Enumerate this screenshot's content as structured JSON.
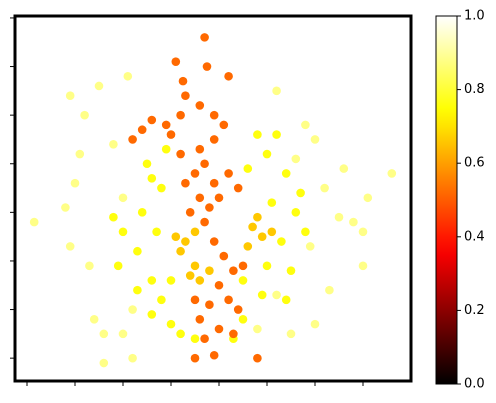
{
  "chart_data": {
    "type": "scatter",
    "colormap": "hot",
    "xlim": [
      -0.25,
      8
    ],
    "xticks": [
      0,
      1,
      2,
      3,
      4,
      5,
      6,
      7
    ],
    "ylim": [
      -0.47,
      7.04
    ],
    "yticks": [
      0,
      1,
      2,
      3,
      4,
      5,
      6,
      7
    ],
    "clim": [
      0,
      1
    ],
    "cticks": [
      {
        "value": 0,
        "label": "0.0"
      },
      {
        "value": 0.2,
        "label": "0.2"
      },
      {
        "value": 0.4,
        "label": "0.4"
      },
      {
        "value": 0.6,
        "label": "0.6"
      },
      {
        "value": 0.8,
        "label": "0.8"
      },
      {
        "value": 1,
        "label": "1.0"
      }
    ],
    "series": [
      {
        "x": [
          0.15,
          0.9,
          1.0,
          0.8,
          1.2,
          1.5,
          2.1,
          0.9,
          1.3,
          1.4,
          1.6,
          2.0,
          1.6,
          2.2,
          5.2,
          5.8,
          6.0,
          6.6,
          7.6,
          7.1,
          7.0,
          7.0,
          6.3,
          6.0,
          5.5,
          4.8,
          6.5,
          6.2,
          5.6,
          1.1,
          1.8,
          2.2,
          5.2,
          6.8,
          2.0,
          5.9,
          2.5,
          2.8,
          2.4,
          2.0,
          2.3,
          2.6,
          2.8,
          3.0,
          3.2,
          2.3,
          1.9,
          2.7,
          5.0,
          5.4,
          5.1,
          5.6,
          5.3,
          5.0,
          4.9,
          4.5,
          4.3,
          5.5,
          4.6,
          2.9,
          5.8,
          3.0,
          4.5,
          1.8,
          2.6,
          5.2,
          4.8,
          5.4,
          3.5,
          2.6,
          5.7,
          3.1,
          3.3,
          3.5,
          3.2,
          3.5,
          3.8,
          3.4,
          4.7,
          4.9,
          4.6,
          5.1,
          3.6,
          4.8,
          3.5,
          3.7,
          3.9,
          3.6,
          3.4,
          3.8,
          4.0,
          3.3,
          3.6,
          3.2,
          3.9,
          4.2,
          4.4,
          3.7,
          3.9,
          4.1,
          4.3,
          4.0,
          4.2,
          4.4,
          3.8,
          3.6,
          4.0,
          3.7,
          4.3,
          3.5,
          4.5,
          2.4,
          2.6,
          2.9,
          2.2,
          3.2,
          3.6,
          3.9,
          4.1,
          3.3,
          3.0,
          3.1,
          3.7,
          3.25,
          3.75,
          3.5,
          3.9,
          4.8,
          4.2
        ],
        "values": [
          2.8,
          5.4,
          3.6,
          3.1,
          5.0,
          5.6,
          5.8,
          2.3,
          1.9,
          0.8,
          0.5,
          0.5,
          -0.1,
          0.0,
          5.5,
          4.8,
          4.5,
          3.9,
          3.8,
          3.3,
          2.6,
          1.9,
          1.4,
          0.7,
          0.5,
          0.6,
          2.9,
          3.5,
          4.1,
          4.2,
          4.4,
          1.0,
          1.3,
          2.8,
          3.3,
          2.3,
          4.0,
          3.5,
          3.0,
          2.6,
          2.2,
          1.6,
          1.2,
          0.7,
          0.5,
          1.4,
          1.9,
          2.6,
          4.2,
          3.8,
          3.2,
          3.0,
          2.4,
          1.9,
          1.3,
          0.8,
          0.4,
          1.8,
          3.9,
          4.3,
          2.6,
          1.6,
          1.6,
          2.9,
          3.7,
          4.6,
          4.6,
          1.2,
          0.4,
          0.9,
          3.4,
          2.5,
          2.4,
          2.6,
          2.2,
          1.9,
          1.8,
          1.7,
          2.7,
          2.5,
          2.3,
          2.6,
          1.6,
          2.9,
          3.8,
          4.0,
          3.6,
          3.3,
          3.0,
          3.1,
          3.3,
          3.6,
          4.3,
          4.2,
          4.5,
          3.8,
          3.5,
          2.8,
          2.4,
          2.1,
          1.8,
          1.5,
          1.2,
          1.0,
          1.1,
          0.8,
          0.6,
          0.4,
          0.5,
          1.2,
          1.9,
          4.7,
          4.9,
          4.8,
          4.5,
          5.0,
          5.2,
          5.0,
          4.8,
          5.4,
          4.6,
          6.1,
          6.6,
          5.7,
          6.0,
          0.0,
          0.06,
          0.0,
          5.8
        ],
        "c": [
          0.88,
          0.88,
          0.88,
          0.88,
          0.88,
          0.88,
          0.88,
          0.88,
          0.88,
          0.88,
          0.88,
          0.88,
          0.88,
          0.88,
          0.88,
          0.88,
          0.88,
          0.88,
          0.88,
          0.88,
          0.88,
          0.88,
          0.88,
          0.88,
          0.88,
          0.88,
          0.88,
          0.88,
          0.88,
          0.88,
          0.88,
          0.88,
          0.88,
          0.88,
          0.88,
          0.88,
          0.76,
          0.76,
          0.76,
          0.76,
          0.76,
          0.76,
          0.76,
          0.76,
          0.76,
          0.76,
          0.76,
          0.76,
          0.76,
          0.76,
          0.76,
          0.76,
          0.76,
          0.76,
          0.76,
          0.76,
          0.76,
          0.76,
          0.76,
          0.76,
          0.76,
          0.76,
          0.76,
          0.76,
          0.76,
          0.76,
          0.76,
          0.76,
          0.76,
          0.76,
          0.76,
          0.66,
          0.66,
          0.66,
          0.66,
          0.66,
          0.66,
          0.66,
          0.66,
          0.66,
          0.66,
          0.66,
          0.66,
          0.66,
          0.52,
          0.52,
          0.52,
          0.52,
          0.52,
          0.52,
          0.52,
          0.52,
          0.52,
          0.52,
          0.52,
          0.52,
          0.52,
          0.52,
          0.52,
          0.52,
          0.52,
          0.52,
          0.52,
          0.52,
          0.52,
          0.52,
          0.52,
          0.52,
          0.52,
          0.52,
          0.52,
          0.52,
          0.52,
          0.52,
          0.52,
          0.52,
          0.52,
          0.52,
          0.52,
          0.52,
          0.52,
          0.52,
          0.52,
          0.52,
          0.52,
          0.52,
          0.52,
          0.52,
          0.52
        ]
      }
    ]
  }
}
